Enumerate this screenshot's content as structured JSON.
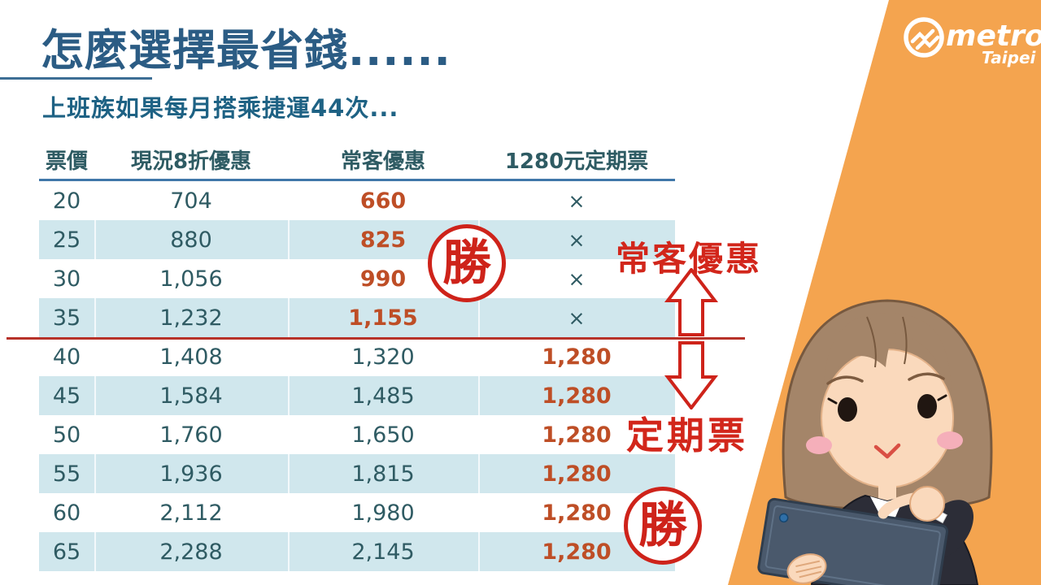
{
  "slide": {
    "title": "怎麼選擇最省錢......",
    "subtitle": "上班族如果每月搭乘捷運44次...",
    "brand": {
      "name": "metro",
      "sub": "Taipei"
    },
    "annotations": {
      "frequent_label": "常客優惠",
      "periodic_label": "定期票",
      "win_stamp": "勝"
    },
    "table": {
      "headers": [
        "票價",
        "現況8折優惠",
        "常客優惠",
        "1280元定期票"
      ],
      "rows": [
        {
          "fare": "20",
          "discount8": "704",
          "frequent": "660",
          "periodic": "×",
          "frequent_win": true
        },
        {
          "fare": "25",
          "discount8": "880",
          "frequent": "825",
          "periodic": "×",
          "frequent_win": true
        },
        {
          "fare": "30",
          "discount8": "1,056",
          "frequent": "990",
          "periodic": "×",
          "frequent_win": true
        },
        {
          "fare": "35",
          "discount8": "1,232",
          "frequent": "1,155",
          "periodic": "×",
          "frequent_win": true
        },
        {
          "fare": "40",
          "discount8": "1,408",
          "frequent": "1,320",
          "periodic": "1,280",
          "frequent_win": false
        },
        {
          "fare": "45",
          "discount8": "1,584",
          "frequent": "1,485",
          "periodic": "1,280",
          "frequent_win": false
        },
        {
          "fare": "50",
          "discount8": "1,760",
          "frequent": "1,650",
          "periodic": "1,280",
          "frequent_win": false
        },
        {
          "fare": "55",
          "discount8": "1,936",
          "frequent": "1,815",
          "periodic": "1,280",
          "frequent_win": false
        },
        {
          "fare": "60",
          "discount8": "2,112",
          "frequent": "1,980",
          "periodic": "1,280",
          "frequent_win": false
        },
        {
          "fare": "65",
          "discount8": "2,288",
          "frequent": "2,145",
          "periodic": "1,280",
          "frequent_win": false
        }
      ]
    },
    "colors": {
      "title_blue": "#2B5C84",
      "subtitle_blue": "#1E6284",
      "table_teal": "#2F5B63",
      "row_blue": "#D0E7ED",
      "header_rule_blue": "#4077A9",
      "highlight_orange": "#BE4E26",
      "annotation_red": "#CE231A",
      "brand_orange": "#F4A44F"
    }
  }
}
